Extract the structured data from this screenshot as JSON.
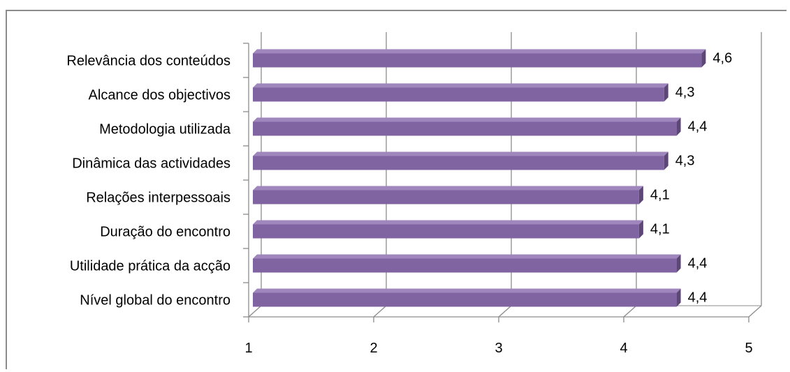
{
  "chart_data": {
    "type": "bar",
    "orientation": "horizontal",
    "categories": [
      "Relevância dos conteúdos",
      "Alcance dos objectivos",
      "Metodologia utilizada",
      "Dinâmica das actividades",
      "Relações interpessoais",
      "Duração do encontro",
      "Utilidade prática da acção",
      "Nível global do encontro"
    ],
    "values": [
      4.6,
      4.3,
      4.4,
      4.3,
      4.1,
      4.1,
      4.4,
      4.4
    ],
    "value_labels": [
      "4,6",
      "4,3",
      "4,4",
      "4,3",
      "4,1",
      "4,1",
      "4,4",
      "4,4"
    ],
    "x_ticks": [
      "1",
      "2",
      "3",
      "4",
      "5"
    ],
    "xlim": [
      1,
      5
    ],
    "grid": true,
    "style": "3d",
    "colors": {
      "bar_front": "#8064a2",
      "bar_top": "#9f86bd",
      "bar_side": "#5c4776",
      "grid": "#8c8c8c",
      "frame": "#8c8c8c"
    }
  }
}
